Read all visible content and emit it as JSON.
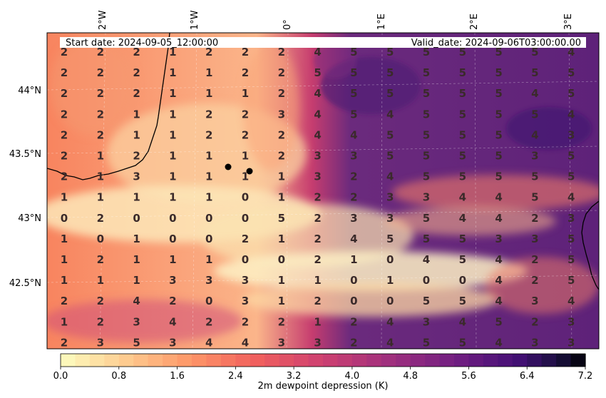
{
  "info": {
    "start_date": "Start date: 2024-09-05_12:00:00",
    "valid_date": "Valid_date: 2024-09-06T03:00:00.00"
  },
  "lon_labels": [
    "2°W",
    "1°W",
    "0°",
    "1°E",
    "2°E",
    "3°E"
  ],
  "lat_labels": [
    "44°N",
    "43.5°N",
    "43°N",
    "42.5°N"
  ],
  "grid_values": [
    [
      "2",
      "2",
      "2",
      "1",
      "2",
      "2",
      "2",
      "4",
      "5",
      "5",
      "5",
      "5",
      "5",
      "5",
      "4"
    ],
    [
      "2",
      "2",
      "2",
      "1",
      "1",
      "2",
      "2",
      "5",
      "5",
      "5",
      "5",
      "5",
      "5",
      "5",
      "5"
    ],
    [
      "2",
      "2",
      "2",
      "1",
      "1",
      "1",
      "2",
      "4",
      "5",
      "5",
      "5",
      "5",
      "5",
      "4",
      "5"
    ],
    [
      "2",
      "2",
      "1",
      "1",
      "2",
      "2",
      "3",
      "4",
      "5",
      "4",
      "5",
      "5",
      "5",
      "5",
      "4"
    ],
    [
      "2",
      "2",
      "1",
      "1",
      "2",
      "2",
      "2",
      "4",
      "4",
      "5",
      "5",
      "5",
      "5",
      "4",
      "3"
    ],
    [
      "2",
      "1",
      "2",
      "1",
      "1",
      "1",
      "2",
      "3",
      "3",
      "5",
      "5",
      "5",
      "5",
      "3",
      "5"
    ],
    [
      "2",
      "1",
      "3",
      "1",
      "1",
      "1",
      "1",
      "3",
      "2",
      "4",
      "5",
      "5",
      "5",
      "5",
      "5"
    ],
    [
      "1",
      "1",
      "1",
      "1",
      "1",
      "0",
      "1",
      "2",
      "2",
      "3",
      "3",
      "4",
      "4",
      "5",
      "4"
    ],
    [
      "0",
      "2",
      "0",
      "0",
      "0",
      "0",
      "5",
      "2",
      "3",
      "3",
      "5",
      "4",
      "4",
      "2",
      "3"
    ],
    [
      "1",
      "0",
      "1",
      "0",
      "0",
      "2",
      "1",
      "2",
      "4",
      "5",
      "5",
      "5",
      "3",
      "3",
      "5"
    ],
    [
      "1",
      "2",
      "1",
      "1",
      "1",
      "0",
      "0",
      "2",
      "1",
      "0",
      "4",
      "5",
      "4",
      "2",
      "5"
    ],
    [
      "1",
      "1",
      "1",
      "3",
      "3",
      "3",
      "1",
      "1",
      "0",
      "1",
      "0",
      "0",
      "4",
      "2",
      "5"
    ],
    [
      "2",
      "2",
      "4",
      "2",
      "0",
      "3",
      "1",
      "2",
      "0",
      "0",
      "5",
      "5",
      "4",
      "3",
      "4"
    ],
    [
      "1",
      "2",
      "3",
      "4",
      "2",
      "2",
      "2",
      "1",
      "2",
      "4",
      "3",
      "4",
      "5",
      "2",
      "3"
    ],
    [
      "2",
      "3",
      "5",
      "3",
      "4",
      "4",
      "3",
      "3",
      "2",
      "4",
      "5",
      "5",
      "4",
      "3",
      "3"
    ]
  ],
  "colorbar": {
    "label": "2m dewpoint depression (K)",
    "ticks": [
      "0.0",
      "0.8",
      "1.6",
      "2.4",
      "3.2",
      "4.0",
      "4.8",
      "5.6",
      "6.4",
      "7.2"
    ],
    "min": 0.0,
    "max": 7.2,
    "levels": 36,
    "colormap": "magma_r"
  },
  "colors": {
    "coast": "#000000",
    "marker": "#000000",
    "low": "#fcfdbf",
    "mid": "#f1605d",
    "high": "#000004"
  }
}
